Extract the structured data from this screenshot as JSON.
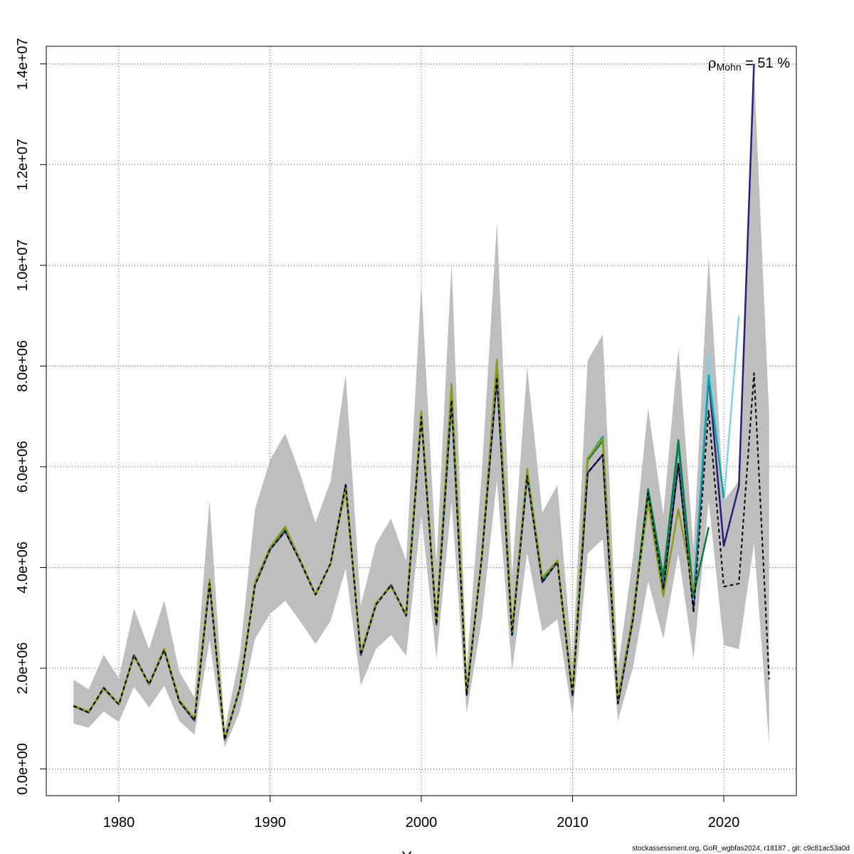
{
  "chart_data": {
    "type": "line",
    "xlabel": "Years",
    "ylabel": "",
    "xlim": [
      1975.2,
      1999.2
    ],
    "ylim": [
      -530000,
      14350000
    ],
    "x_ticks": [
      1980,
      1990,
      2000,
      2010,
      2020
    ],
    "x_tick_labels": [
      "1980",
      "1990",
      "2000",
      "2010",
      "2020"
    ],
    "y_ticks": [
      0,
      2000000,
      4000000,
      6000000,
      8000000,
      10000000,
      12000000,
      14000000
    ],
    "y_tick_labels": [
      "0.0e+00",
      "2.0e+06",
      "4.0e+06",
      "6.0e+06",
      "8.0e+06",
      "1.0e+07",
      "1.2e+07",
      "1.4e+07"
    ],
    "grid": true,
    "annotation": {
      "rho": "ρ",
      "sub": "Mohn",
      "text": " = 51 %"
    },
    "confidence_band": {
      "color": "#bebebe",
      "x": [
        1977,
        1978,
        1979,
        1980,
        1981,
        1982,
        1983,
        1984,
        1985,
        1986,
        1987,
        1988,
        1989,
        1990,
        1991,
        1992,
        1993,
        1994,
        1995,
        1996,
        1997,
        1998,
        1999,
        2000,
        2001,
        2002,
        2003,
        2004,
        2005,
        2006,
        2007,
        2008,
        2009,
        2010,
        2011,
        2012,
        2013,
        2014,
        2015,
        2016,
        2017,
        2018,
        2019,
        2020,
        2021,
        2022,
        2023
      ],
      "lower": [
        900000,
        820000,
        1140000,
        930000,
        1630000,
        1220000,
        1650000,
        950000,
        680000,
        2560000,
        430000,
        1140000,
        2580000,
        3080000,
        3340000,
        2930000,
        2480000,
        2940000,
        3980000,
        1660000,
        2380000,
        2660000,
        2240000,
        5060000,
        2180000,
        5300000,
        1110000,
        2960000,
        5730000,
        1950000,
        4290000,
        2730000,
        2970000,
        1040000,
        4280000,
        4560000,
        960000,
        2020000,
        3730000,
        2580000,
        4280000,
        2190000,
        5320000,
        2460000,
        2380000,
        4480000,
        480000
      ],
      "upper": [
        1770000,
        1580000,
        2270000,
        1800000,
        3190000,
        2380000,
        3350000,
        1930000,
        1420000,
        5340000,
        780000,
        2260000,
        5150000,
        6140000,
        6660000,
        5850000,
        4890000,
        5710000,
        7840000,
        3240000,
        4470000,
        4970000,
        4130000,
        9630000,
        4080000,
        10060000,
        2010000,
        5870000,
        10850000,
        3850000,
        7980000,
        5090000,
        5640000,
        2110000,
        8110000,
        8630000,
        1980000,
        4220000,
        7170000,
        5050000,
        8360000,
        4380000,
        10180000,
        5320000,
        5720000,
        13910000,
        7020000
      ]
    },
    "series": [
      {
        "color": "#2b1e7b",
        "width": 2.5,
        "dash": "",
        "x_start": 1977,
        "values": [
          1250000,
          1120000,
          1610000,
          1280000,
          2260000,
          1680000,
          2360000,
          1340000,
          960000,
          3680000,
          580000,
          1600000,
          3650000,
          4360000,
          4720000,
          4120000,
          3460000,
          4080000,
          5640000,
          2260000,
          3260000,
          3650000,
          3040000,
          6990000,
          2870000,
          7320000,
          1470000,
          4200000,
          7780000,
          2660000,
          5820000,
          3710000,
          4110000,
          1460000,
          5880000,
          6240000,
          1300000,
          2980000,
          5480000,
          3560000,
          6060000,
          3210000,
          7800000,
          4430000,
          5610000,
          14000000
        ]
      },
      {
        "color": "#87ceeb",
        "width": 2.5,
        "dash": "",
        "x_start": 1977,
        "values": [
          1250000,
          1130000,
          1590000,
          1280000,
          2240000,
          1680000,
          2370000,
          1360000,
          980000,
          3720000,
          590000,
          1600000,
          3670000,
          4380000,
          4760000,
          4130000,
          3460000,
          4080000,
          5590000,
          2280000,
          3280000,
          3630000,
          3060000,
          7050000,
          2890000,
          7460000,
          1510000,
          4200000,
          7990000,
          2700000,
          5880000,
          3750000,
          4130000,
          1500000,
          6160000,
          6610000,
          1350000,
          3040000,
          5530000,
          3720000,
          6400000,
          3370000,
          8230000,
          5310000,
          9000000
        ]
      },
      {
        "color": "#1a9e9e",
        "width": 2.5,
        "dash": "",
        "x_start": 1977,
        "values": [
          1250000,
          1130000,
          1590000,
          1280000,
          2240000,
          1680000,
          2370000,
          1360000,
          980000,
          3720000,
          590000,
          1600000,
          3670000,
          4380000,
          4760000,
          4130000,
          3460000,
          4080000,
          5590000,
          2280000,
          3280000,
          3630000,
          3060000,
          7050000,
          2890000,
          7460000,
          1510000,
          4200000,
          7990000,
          2700000,
          5880000,
          3750000,
          4130000,
          1500000,
          6160000,
          6600000,
          1360000,
          3040000,
          5530000,
          3720000,
          6420000,
          3400000,
          7820000,
          5380000
        ]
      },
      {
        "color": "#0b7a3a",
        "width": 2.5,
        "dash": "",
        "x_start": 1977,
        "values": [
          1250000,
          1130000,
          1590000,
          1280000,
          2250000,
          1680000,
          2380000,
          1360000,
          990000,
          3740000,
          590000,
          1610000,
          3690000,
          4390000,
          4780000,
          4140000,
          3460000,
          4080000,
          5570000,
          2290000,
          3290000,
          3630000,
          3070000,
          7080000,
          2900000,
          7590000,
          1530000,
          4200000,
          8090000,
          2730000,
          5930000,
          3780000,
          4140000,
          1520000,
          6130000,
          6520000,
          1370000,
          3060000,
          5560000,
          3810000,
          6530000,
          3430000,
          4800000
        ]
      },
      {
        "color": "#8c9a1a",
        "width": 2.5,
        "dash": "",
        "x_start": 1977,
        "values": [
          1260000,
          1140000,
          1590000,
          1290000,
          2240000,
          1690000,
          2390000,
          1370000,
          1000000,
          3760000,
          600000,
          1620000,
          3700000,
          4400000,
          4810000,
          4140000,
          3460000,
          4080000,
          5560000,
          2300000,
          3290000,
          3620000,
          3070000,
          7100000,
          2910000,
          7650000,
          1540000,
          4200000,
          8130000,
          2740000,
          5960000,
          3800000,
          4140000,
          1530000,
          6170000,
          6560000,
          1380000,
          3070000,
          5300000,
          3430000,
          5160000,
          3550000
        ]
      },
      {
        "color": "#000000",
        "width": 2,
        "dash": "5,4",
        "x_start": 1977,
        "values": [
          1250000,
          1120000,
          1610000,
          1280000,
          2260000,
          1680000,
          2360000,
          1340000,
          960000,
          3680000,
          580000,
          1600000,
          3650000,
          4360000,
          4720000,
          4120000,
          3460000,
          4080000,
          5640000,
          2260000,
          3260000,
          3650000,
          3040000,
          6990000,
          2870000,
          7320000,
          1470000,
          4200000,
          7780000,
          2660000,
          5820000,
          3710000,
          4110000,
          1460000,
          5880000,
          6240000,
          1300000,
          2980000,
          5480000,
          3560000,
          6060000,
          3100000,
          7110000,
          3620000,
          3680000,
          7860000,
          1780000
        ]
      }
    ]
  },
  "footer": "stockassessment.org, GoR_wgbfas2024, r18187 , git: c9c81ac53a0d"
}
